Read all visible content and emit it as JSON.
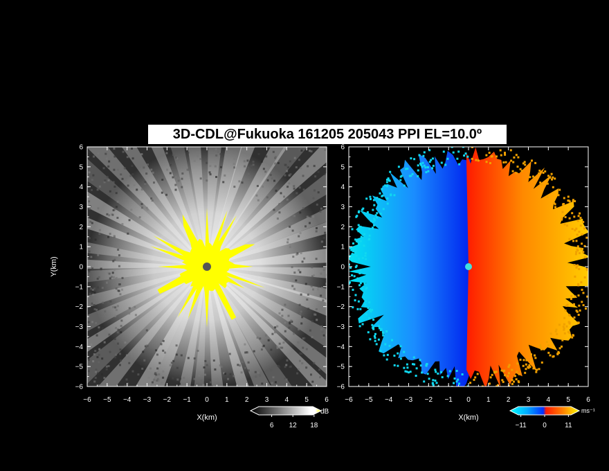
{
  "title": "3D-CDL@Fukuoka 161205 205043 PPI EL=10.0º",
  "chart_data": [
    {
      "type": "heatmap",
      "variable": "reflectivity",
      "xlabel": "X(km)",
      "ylabel": "Y(km)",
      "xlim": [
        -6,
        6
      ],
      "ylim": [
        -6,
        6
      ],
      "xticks": [
        -6,
        -5,
        -4,
        -3,
        -2,
        -1,
        0,
        1,
        2,
        3,
        4,
        5,
        6
      ],
      "yticks": [
        -6,
        -5,
        -4,
        -3,
        -2,
        -1,
        0,
        1,
        2,
        3,
        4,
        5,
        6
      ],
      "colorbar": {
        "unit": "dB",
        "ticks": [
          6,
          12,
          18
        ],
        "range": [
          0,
          20
        ],
        "colors": [
          "#000000",
          "#ffffff",
          "#ffff00"
        ]
      },
      "description_values": {
        "radar_center": [
          0,
          0
        ],
        "max_range_km": 6.0
      }
    },
    {
      "type": "heatmap",
      "variable": "doppler_velocity",
      "xlabel": "X(km)",
      "ylabel": "",
      "xlim": [
        -6,
        6
      ],
      "ylim": [
        -6,
        6
      ],
      "xticks": [
        -6,
        -5,
        -4,
        -3,
        -2,
        -1,
        0,
        1,
        2,
        3,
        4,
        5,
        6
      ],
      "yticks": [
        -6,
        -5,
        -4,
        -3,
        -2,
        -1,
        0,
        1,
        2,
        3,
        4,
        5,
        6
      ],
      "colorbar": {
        "unit": "ms⁻¹",
        "ticks": [
          -11,
          0,
          11
        ],
        "range": [
          -16,
          16
        ],
        "colors": [
          "#00e5ff",
          "#1e5aff",
          "#ff2a00",
          "#ffd000"
        ]
      },
      "description_values": {
        "radar_center": [
          0,
          0
        ],
        "max_range_km": 6.0
      }
    }
  ]
}
